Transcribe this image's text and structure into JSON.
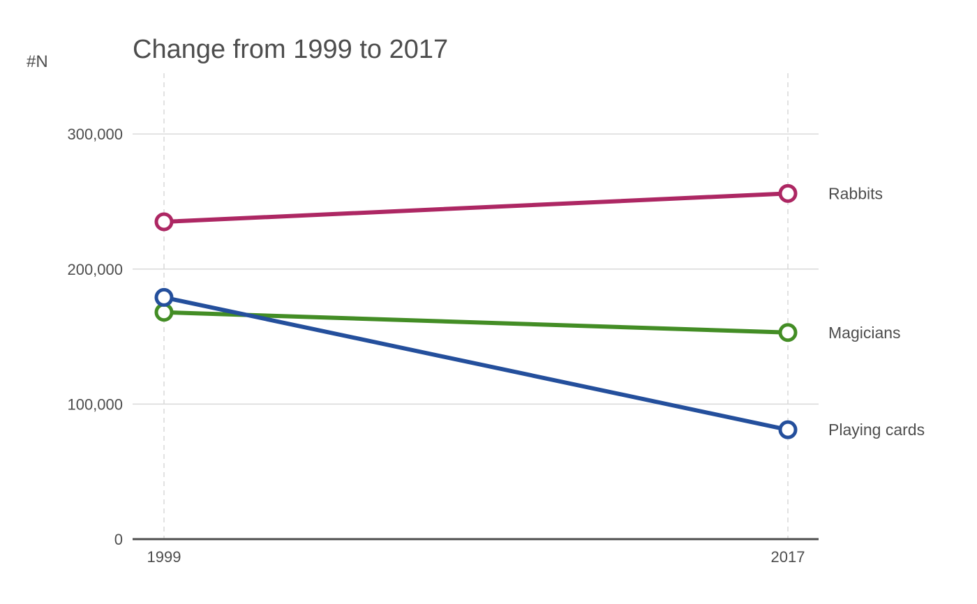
{
  "chart_data": {
    "type": "line",
    "title": "Change from 1999 to 2017",
    "xlabel": "",
    "ylabel": "#N",
    "x": [
      "1999",
      "2017"
    ],
    "ylim": [
      0,
      345000
    ],
    "yticks": [
      0,
      100000,
      200000,
      300000
    ],
    "ytick_labels": [
      "0",
      "100,000",
      "200,000",
      "300,000"
    ],
    "grid": true,
    "legend": "none (series labeled at line ends)",
    "series": [
      {
        "name": "Rabbits",
        "values": [
          235000,
          256000
        ],
        "color": "#ad2763"
      },
      {
        "name": "Magicians",
        "values": [
          168000,
          153000
        ],
        "color": "#438d25"
      },
      {
        "name": "Playing cards",
        "values": [
          179000,
          81000
        ],
        "color": "#244f9c"
      }
    ]
  }
}
